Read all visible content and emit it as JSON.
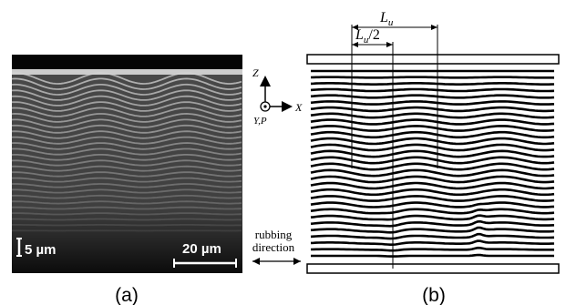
{
  "panel_a": {
    "caption": "(a)",
    "scale_vertical": "5 µm",
    "scale_horizontal": "20 µm"
  },
  "panel_b": {
    "caption": "(b)",
    "period_label": "L",
    "period_sub": "u",
    "half_period_label": "L",
    "half_period_sub": "u",
    "half_period_suffix": "/2"
  },
  "axes": {
    "z_label": "Z",
    "x_label": "X",
    "yp_label": "Y,P"
  },
  "rubbing_label_line1": "rubbing",
  "rubbing_label_line2": "direction"
}
